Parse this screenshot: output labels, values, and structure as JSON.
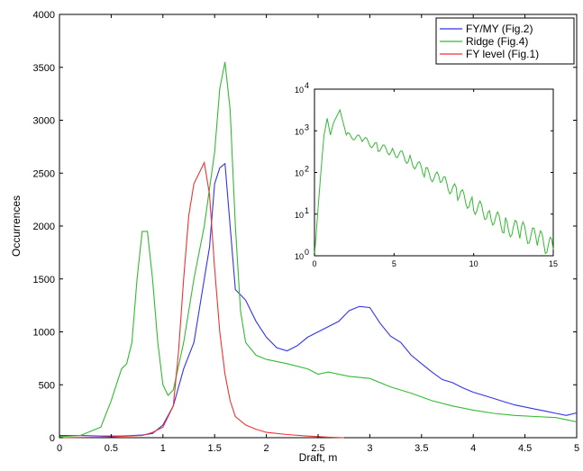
{
  "chart_data": [
    {
      "type": "line",
      "xlabel": "Draft, m",
      "ylabel": "Occurrences",
      "xlim": [
        0,
        5
      ],
      "ylim": [
        0,
        4000
      ],
      "xticks": [
        0,
        0.5,
        1,
        1.5,
        2,
        2.5,
        3,
        3.5,
        4,
        4.5,
        5
      ],
      "xtick_labels": [
        "0",
        "0.5",
        "1",
        "1.5",
        "2",
        "2.5",
        "3",
        "3.5",
        "4",
        "4.5",
        "5"
      ],
      "yticks": [
        0,
        500,
        1000,
        1500,
        2000,
        2500,
        3000,
        3500,
        4000
      ],
      "ytick_labels": [
        "0",
        "500",
        "1000",
        "1500",
        "2000",
        "2500",
        "3000",
        "3500",
        "4000"
      ],
      "grid": false,
      "legend_position": "top-right",
      "series": [
        {
          "name": "FY/MY (Fig.2)",
          "color": "#3333ee",
          "x": [
            0,
            0.2,
            0.4,
            0.6,
            0.8,
            0.9,
            1.0,
            1.1,
            1.2,
            1.3,
            1.4,
            1.45,
            1.5,
            1.55,
            1.6,
            1.65,
            1.7,
            1.75,
            1.8,
            1.9,
            2.0,
            2.1,
            2.2,
            2.3,
            2.4,
            2.5,
            2.6,
            2.7,
            2.8,
            2.9,
            3.0,
            3.1,
            3.2,
            3.3,
            3.4,
            3.5,
            3.6,
            3.7,
            3.8,
            3.9,
            4.0,
            4.1,
            4.2,
            4.3,
            4.4,
            4.5,
            4.6,
            4.7,
            4.8,
            4.9,
            5.0
          ],
          "y": [
            20,
            20,
            15,
            15,
            25,
            40,
            120,
            300,
            650,
            900,
            1500,
            1800,
            2400,
            2550,
            2590,
            2000,
            1400,
            1350,
            1300,
            1100,
            950,
            850,
            820,
            870,
            950,
            1000,
            1050,
            1100,
            1200,
            1240,
            1230,
            1080,
            960,
            900,
            780,
            700,
            620,
            550,
            520,
            470,
            430,
            400,
            370,
            340,
            310,
            290,
            270,
            250,
            230,
            210,
            235
          ]
        },
        {
          "name": "Ridge (Fig.4)",
          "color": "#33bb33",
          "x": [
            0,
            0.2,
            0.4,
            0.5,
            0.55,
            0.6,
            0.65,
            0.7,
            0.75,
            0.8,
            0.85,
            0.9,
            0.95,
            1.0,
            1.05,
            1.1,
            1.2,
            1.3,
            1.4,
            1.5,
            1.55,
            1.6,
            1.65,
            1.7,
            1.75,
            1.8,
            1.9,
            2.0,
            2.2,
            2.4,
            2.5,
            2.6,
            2.8,
            3.0,
            3.2,
            3.4,
            3.6,
            3.8,
            4.0,
            4.2,
            4.4,
            4.6,
            4.8,
            5.0
          ],
          "y": [
            10,
            20,
            100,
            350,
            500,
            650,
            700,
            900,
            1500,
            1950,
            1950,
            1500,
            900,
            500,
            400,
            450,
            900,
            1500,
            2000,
            2700,
            3300,
            3550,
            3100,
            2000,
            1200,
            900,
            780,
            740,
            700,
            650,
            600,
            620,
            580,
            560,
            480,
            420,
            350,
            300,
            260,
            230,
            210,
            200,
            190,
            150
          ]
        },
        {
          "name": "FY level (Fig.1)",
          "color": "#ee3333",
          "x": [
            0,
            0.4,
            0.8,
            0.9,
            1.0,
            1.1,
            1.15,
            1.2,
            1.25,
            1.3,
            1.35,
            1.4,
            1.45,
            1.5,
            1.55,
            1.6,
            1.65,
            1.7,
            1.8,
            1.9,
            2.0,
            2.2,
            2.4,
            2.6,
            2.75
          ],
          "y": [
            0,
            5,
            20,
            50,
            100,
            300,
            800,
            1500,
            2100,
            2400,
            2500,
            2600,
            2300,
            1600,
            1000,
            600,
            350,
            200,
            120,
            80,
            50,
            30,
            15,
            5,
            0
          ]
        }
      ]
    },
    {
      "type": "line",
      "inset": true,
      "xlim": [
        0,
        15
      ],
      "ylim_log10": [
        0,
        4
      ],
      "yscale": "log",
      "xticks": [
        0,
        5,
        10,
        15
      ],
      "xtick_labels": [
        "0",
        "5",
        "10",
        "15"
      ],
      "yticks": [
        0,
        1,
        2,
        3,
        4
      ],
      "ytick_base": "10",
      "ytick_exponents": [
        "0",
        "1",
        "2",
        "3",
        "4"
      ],
      "series": [
        {
          "color": "#33bb33",
          "x": [
            0,
            0.2,
            0.4,
            0.6,
            0.8,
            1.0,
            1.2,
            1.6,
            2.0,
            3.0,
            4.0,
            5.0,
            6.0,
            7.0,
            8.0,
            9.0,
            10.0,
            11.0,
            12.0,
            13.0,
            14.0,
            14.5,
            15.0
          ],
          "y": [
            0,
            1.0,
            2.0,
            2.9,
            3.3,
            2.9,
            3.2,
            3.5,
            2.9,
            2.8,
            2.6,
            2.5,
            2.3,
            2.0,
            1.8,
            1.5,
            1.2,
            1.0,
            0.7,
            0.6,
            0.4,
            0.3,
            0.15
          ]
        }
      ]
    }
  ]
}
